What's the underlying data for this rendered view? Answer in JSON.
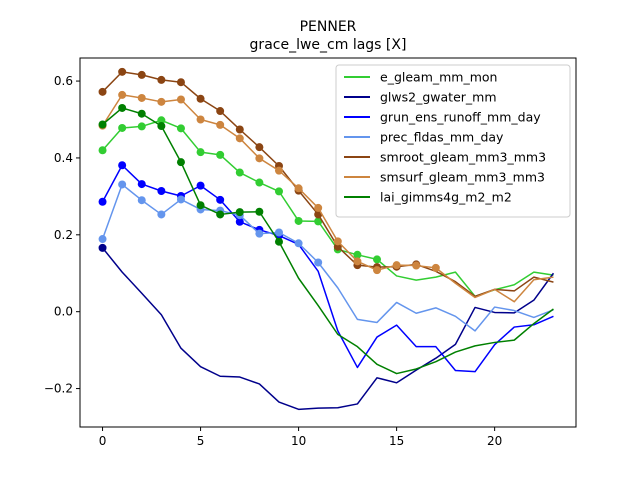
{
  "chart_data": {
    "type": "line",
    "title": "PENNER",
    "subtitle": "grace_lwe_cm lags [X]",
    "xlabel": "",
    "ylabel": "",
    "xlim": [
      -1.15,
      24.15
    ],
    "ylim": [
      -0.3,
      0.66
    ],
    "xticks": [
      0,
      5,
      10,
      15,
      20
    ],
    "yticks": [
      -0.2,
      0.0,
      0.2,
      0.4,
      0.6
    ],
    "xtick_labels": [
      "0",
      "5",
      "10",
      "15",
      "20"
    ],
    "ytick_labels": [
      "−0.2",
      "0.0",
      "0.2",
      "0.4",
      "0.6"
    ],
    "grid": false,
    "legend_position": "top-right",
    "x": [
      0,
      1,
      2,
      3,
      4,
      5,
      6,
      7,
      8,
      9,
      10,
      11,
      12,
      13,
      14,
      15,
      16,
      17,
      18,
      19,
      20,
      21,
      22,
      23
    ],
    "series": [
      {
        "name": "e_gleam_mm_mon",
        "color": "#32cd32",
        "values": [
          0.42,
          0.478,
          0.482,
          0.498,
          0.477,
          0.415,
          0.408,
          0.362,
          0.336,
          0.313,
          0.236,
          0.235,
          0.162,
          0.148,
          0.136,
          0.093,
          0.082,
          0.09,
          0.103,
          0.04,
          0.057,
          0.07,
          0.103,
          0.095
        ],
        "markers": [
          0,
          1,
          2,
          3,
          4,
          5,
          6,
          7,
          8,
          9,
          10,
          11,
          12,
          13,
          14
        ]
      },
      {
        "name": "glws2_gwater_mm",
        "color": "#00008b",
        "values": [
          0.166,
          0.103,
          0.048,
          -0.008,
          -0.095,
          -0.143,
          -0.168,
          -0.17,
          -0.188,
          -0.235,
          -0.254,
          -0.251,
          -0.25,
          -0.24,
          -0.172,
          -0.185,
          -0.152,
          -0.121,
          -0.085,
          0.011,
          -0.002,
          -0.003,
          0.03,
          0.1
        ],
        "markers": [
          0
        ]
      },
      {
        "name": "grun_ens_runoff_mm_day",
        "color": "#0000ff",
        "values": [
          0.286,
          0.381,
          0.332,
          0.314,
          0.301,
          0.328,
          0.291,
          0.234,
          0.213,
          0.198,
          0.175,
          0.105,
          -0.05,
          -0.145,
          -0.066,
          -0.035,
          -0.091,
          -0.091,
          -0.153,
          -0.156,
          -0.086,
          -0.04,
          -0.034,
          -0.012
        ],
        "markers": [
          0,
          1,
          2,
          3,
          4,
          5,
          6,
          7,
          8,
          9
        ]
      },
      {
        "name": "prec_fldas_mm_day",
        "color": "#6495ed",
        "values": [
          0.189,
          0.331,
          0.29,
          0.253,
          0.292,
          0.266,
          0.263,
          0.251,
          0.203,
          0.206,
          0.178,
          0.128,
          0.062,
          -0.02,
          -0.028,
          0.024,
          -0.004,
          0.01,
          -0.012,
          -0.05,
          0.012,
          0.003,
          -0.015,
          0.005
        ],
        "markers": [
          0,
          1,
          2,
          3,
          4,
          5,
          6,
          7,
          8,
          9,
          10,
          11
        ]
      },
      {
        "name": "smroot_gleam_mm3_mm3",
        "color": "#8b4513",
        "values": [
          0.572,
          0.624,
          0.616,
          0.603,
          0.597,
          0.554,
          0.522,
          0.474,
          0.428,
          0.379,
          0.315,
          0.253,
          0.169,
          0.121,
          0.116,
          0.117,
          0.123,
          0.105,
          0.078,
          0.04,
          0.058,
          0.054,
          0.09,
          0.077
        ],
        "markers": [
          0,
          1,
          2,
          3,
          4,
          5,
          6,
          7,
          8,
          9,
          10,
          11,
          12,
          13,
          14,
          15,
          16
        ]
      },
      {
        "name": "smsurf_gleam_mm3_mm3",
        "color": "#cd853f",
        "values": [
          0.484,
          0.564,
          0.556,
          0.546,
          0.552,
          0.5,
          0.486,
          0.451,
          0.399,
          0.367,
          0.321,
          0.27,
          0.183,
          0.131,
          0.108,
          0.121,
          0.12,
          0.114,
          0.074,
          0.037,
          0.058,
          0.026,
          0.083,
          0.09
        ],
        "markers": [
          0,
          1,
          2,
          3,
          4,
          5,
          6,
          7,
          8,
          9,
          10,
          11,
          12,
          13,
          14,
          15,
          16,
          17
        ]
      },
      {
        "name": "lai_gimms4g_m2_m2",
        "color": "#008000",
        "values": [
          0.487,
          0.53,
          0.515,
          0.483,
          0.389,
          0.277,
          0.253,
          0.259,
          0.26,
          0.182,
          0.087,
          0.016,
          -0.059,
          -0.091,
          -0.137,
          -0.161,
          -0.149,
          -0.13,
          -0.105,
          -0.089,
          -0.08,
          -0.074,
          -0.031,
          0.007
        ],
        "markers": [
          0,
          1,
          2,
          3,
          4,
          5,
          6,
          7,
          8,
          9
        ]
      }
    ]
  }
}
